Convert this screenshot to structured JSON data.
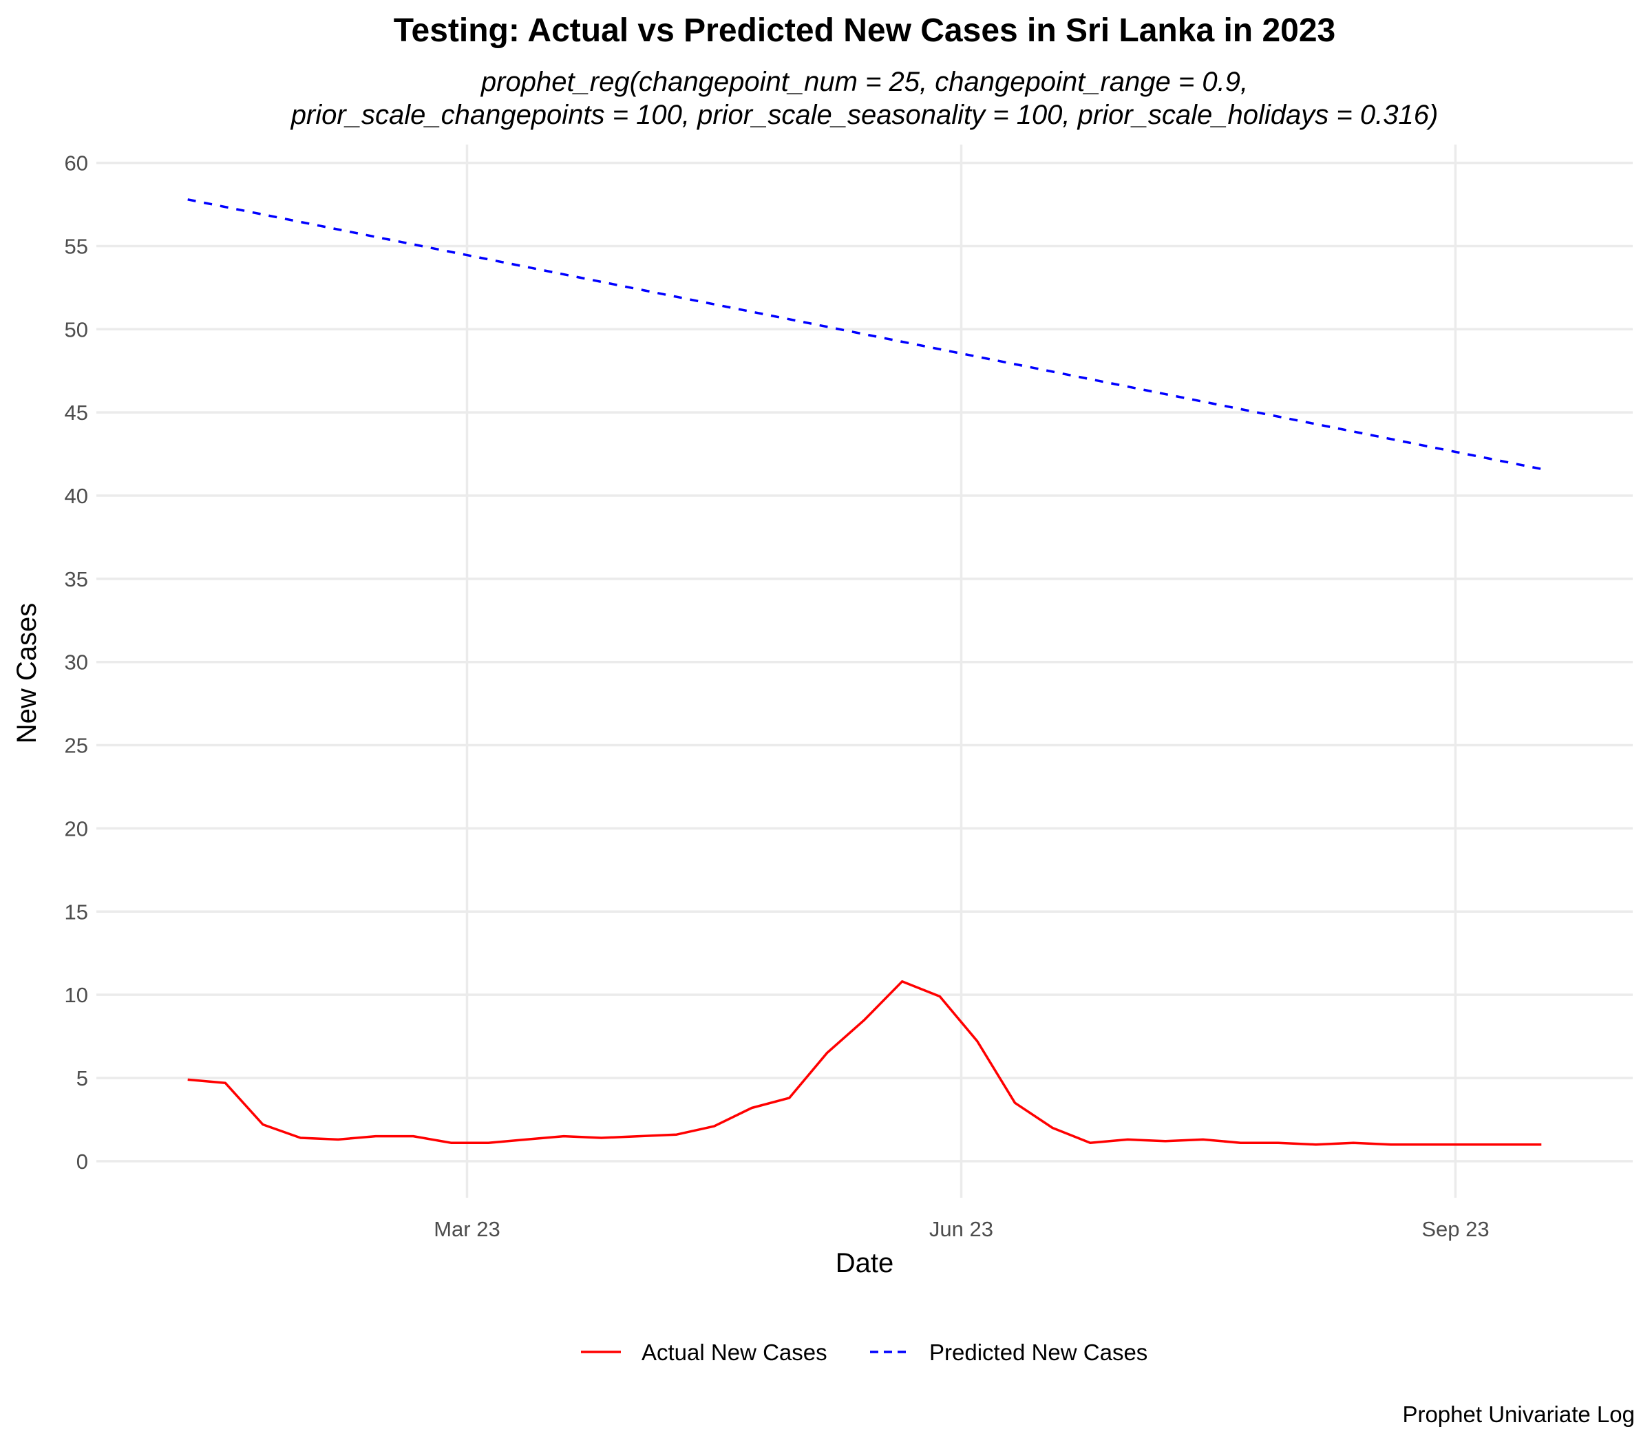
{
  "chart_data": {
    "type": "line",
    "title": "Testing: Actual vs Predicted New Cases in Sri Lanka in 2023",
    "subtitle_lines": [
      "prophet_reg(changepoint_num = 25, changepoint_range = 0.9,",
      "prior_scale_changepoints = 100, prior_scale_seasonality = 100, prior_scale_holidays = 0.316)"
    ],
    "xlabel": "Date",
    "ylabel": "New Cases",
    "caption": "Prophet Univariate Log",
    "xlim": [
      "2022-12-22",
      "2023-10-04"
    ],
    "ylim": [
      -2.2,
      61.1
    ],
    "x_ticks": [
      {
        "date": "2023-03-01",
        "label": "Mar 23"
      },
      {
        "date": "2023-06-01",
        "label": "Jun 23"
      },
      {
        "date": "2023-09-01",
        "label": "Sep 23"
      }
    ],
    "y_ticks": [
      0,
      5,
      10,
      15,
      20,
      25,
      30,
      35,
      40,
      45,
      50,
      55,
      60
    ],
    "grid": true,
    "legend_position": "bottom",
    "series": [
      {
        "name": "Actual New Cases",
        "color": "#ff0000",
        "linetype": "solid",
        "x": [
          "2023-01-08",
          "2023-01-15",
          "2023-01-22",
          "2023-01-29",
          "2023-02-05",
          "2023-02-12",
          "2023-02-19",
          "2023-02-26",
          "2023-03-05",
          "2023-03-12",
          "2023-03-19",
          "2023-03-26",
          "2023-04-02",
          "2023-04-09",
          "2023-04-16",
          "2023-04-23",
          "2023-04-30",
          "2023-05-07",
          "2023-05-14",
          "2023-05-21",
          "2023-05-28",
          "2023-06-04",
          "2023-06-11",
          "2023-06-18",
          "2023-06-25",
          "2023-07-02",
          "2023-07-09",
          "2023-07-16",
          "2023-07-23",
          "2023-07-30",
          "2023-08-06",
          "2023-08-13",
          "2023-08-20",
          "2023-08-27",
          "2023-09-03",
          "2023-09-10",
          "2023-09-17"
        ],
        "y": [
          4.9,
          4.7,
          2.2,
          1.4,
          1.3,
          1.5,
          1.5,
          1.1,
          1.1,
          1.3,
          1.5,
          1.4,
          1.5,
          1.6,
          2.1,
          3.2,
          3.8,
          6.5,
          8.5,
          10.8,
          9.9,
          7.2,
          3.5,
          2.0,
          1.1,
          1.3,
          1.2,
          1.3,
          1.1,
          1.1,
          1.0,
          1.1,
          1.0,
          1.0,
          1.0,
          1.0,
          1.0
        ]
      },
      {
        "name": "Predicted New Cases",
        "color": "#0000ff",
        "linetype": "dashed",
        "x": [
          "2023-01-08",
          "2023-09-17"
        ],
        "y": [
          57.8,
          41.6
        ]
      }
    ]
  }
}
